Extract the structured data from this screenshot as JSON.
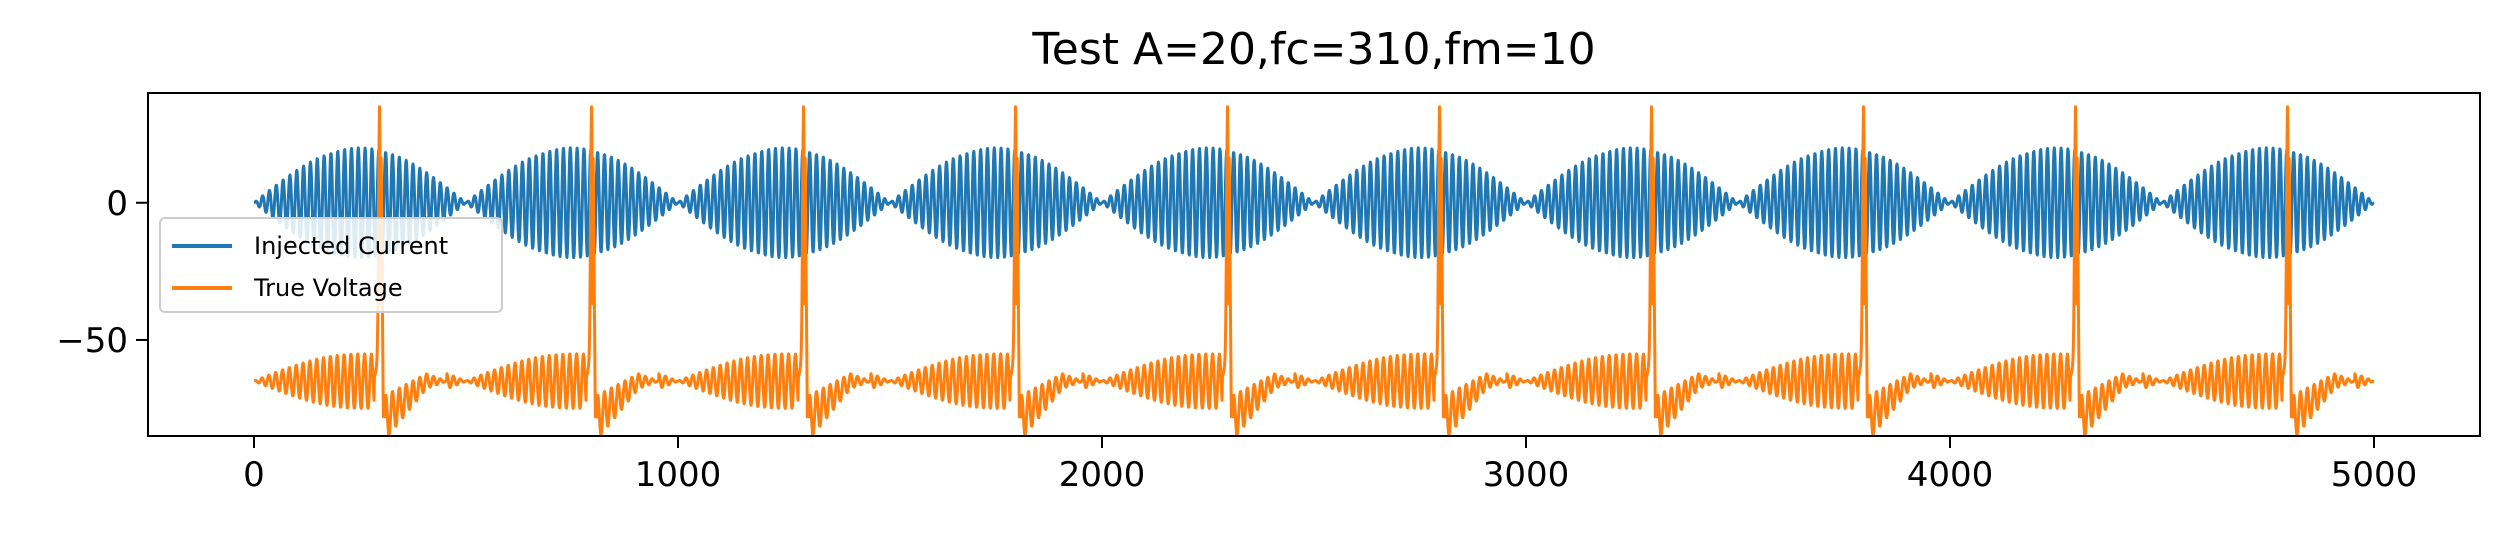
{
  "chart_data": {
    "type": "line",
    "title": "Test A=20,fc=310,fm=10",
    "xlabel": "",
    "ylabel": "",
    "xlim": [
      -250,
      5250
    ],
    "ylim": [
      -85,
      40
    ],
    "x_ticks": [
      0,
      1000,
      2000,
      3000,
      4000,
      5000
    ],
    "x_tick_labels": [
      "0",
      "1000",
      "2000",
      "3000",
      "4000",
      "5000"
    ],
    "y_ticks": [
      0,
      -50
    ],
    "y_tick_labels": [
      "0",
      "−50"
    ],
    "grid": false,
    "legend": "center-left",
    "series": [
      {
        "name": "Injected Current",
        "color": "#1f77b4",
        "description_params": {
          "amplitude": 20,
          "carrier_cycles_per_1000": 62,
          "envelope_period": 500,
          "x_start": 0,
          "x_end": 5000
        }
      },
      {
        "name": "True Voltage",
        "color": "#ff7f0e",
        "description_params": {
          "baseline": -65,
          "spike_peak": 35,
          "spike_trough": -78,
          "spike_x": [
            295,
            795,
            1295,
            1795,
            2295,
            2795,
            3295,
            3795,
            4295,
            4795
          ],
          "x_start": 0,
          "x_end": 5000
        }
      }
    ]
  }
}
